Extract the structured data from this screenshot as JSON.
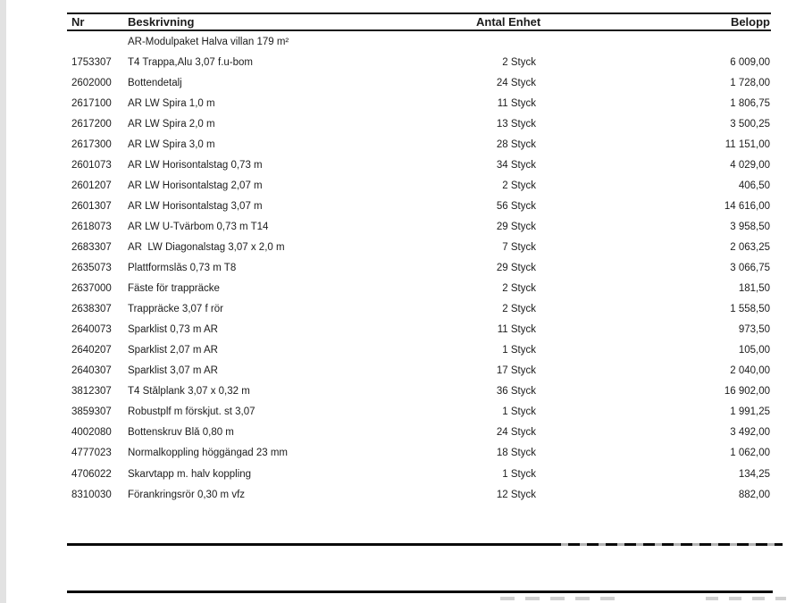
{
  "table": {
    "headers": {
      "nr": "Nr",
      "beskrivning": "Beskrivning",
      "antal_enhet": "Antal Enhet",
      "belopp": "Belopp"
    },
    "rows": [
      {
        "nr": "",
        "beskrivning": "AR-Modulpaket Halva villan 179 m²",
        "antal": "",
        "enhet": "",
        "belopp": ""
      },
      {
        "nr": "1753307",
        "beskrivning": "T4 Trappa,Alu 3,07 f.u-bom",
        "antal": "2",
        "enhet": "Styck",
        "belopp": "6 009,00"
      },
      {
        "nr": "2602000",
        "beskrivning": "Bottendetalj",
        "antal": "24",
        "enhet": "Styck",
        "belopp": "1 728,00"
      },
      {
        "nr": "2617100",
        "beskrivning": "AR LW Spira 1,0 m",
        "antal": "11",
        "enhet": "Styck",
        "belopp": "1 806,75"
      },
      {
        "nr": "2617200",
        "beskrivning": "AR LW Spira 2,0 m",
        "antal": "13",
        "enhet": "Styck",
        "belopp": "3 500,25"
      },
      {
        "nr": "2617300",
        "beskrivning": "AR LW Spira 3,0 m",
        "antal": "28",
        "enhet": "Styck",
        "belopp": "11 151,00"
      },
      {
        "nr": "2601073",
        "beskrivning": "AR LW Horisontalstag 0,73 m",
        "antal": "34",
        "enhet": "Styck",
        "belopp": "4 029,00"
      },
      {
        "nr": "2601207",
        "beskrivning": "AR LW Horisontalstag 2,07 m",
        "antal": "2",
        "enhet": "Styck",
        "belopp": "406,50"
      },
      {
        "nr": "2601307",
        "beskrivning": "AR LW Horisontalstag 3,07 m",
        "antal": "56",
        "enhet": "Styck",
        "belopp": "14 616,00"
      },
      {
        "nr": "2618073",
        "beskrivning": "AR LW U-Tvärbom 0,73 m T14",
        "antal": "29",
        "enhet": "Styck",
        "belopp": "3 958,50"
      },
      {
        "nr": "2683307",
        "beskrivning": "AR  LW Diagonalstag 3,07 x 2,0 m",
        "antal": "7",
        "enhet": "Styck",
        "belopp": "2 063,25"
      },
      {
        "nr": "2635073",
        "beskrivning": "Plattformslås 0,73 m T8",
        "antal": "29",
        "enhet": "Styck",
        "belopp": "3 066,75"
      },
      {
        "nr": "2637000",
        "beskrivning": "Fäste för trappräcke",
        "antal": "2",
        "enhet": "Styck",
        "belopp": "181,50"
      },
      {
        "nr": "2638307",
        "beskrivning": "Trappräcke 3,07 f rör",
        "antal": "2",
        "enhet": "Styck",
        "belopp": "1 558,50"
      },
      {
        "nr": "2640073",
        "beskrivning": "Sparklist 0,73 m AR",
        "antal": "11",
        "enhet": "Styck",
        "belopp": "973,50"
      },
      {
        "nr": "2640207",
        "beskrivning": "Sparklist 2,07 m AR",
        "antal": "1",
        "enhet": "Styck",
        "belopp": "105,00"
      },
      {
        "nr": "2640307",
        "beskrivning": "Sparklist 3,07 m AR",
        "antal": "17",
        "enhet": "Styck",
        "belopp": "2 040,00"
      },
      {
        "nr": "3812307",
        "beskrivning": "T4 Stålplank 3,07 x 0,32 m",
        "antal": "36",
        "enhet": "Styck",
        "belopp": "16 902,00"
      },
      {
        "nr": "3859307",
        "beskrivning": "Robustplf m förskjut. st 3,07",
        "antal": "1",
        "enhet": "Styck",
        "belopp": "1 991,25"
      },
      {
        "nr": "4002080",
        "beskrivning": "Bottenskruv Blå 0,80 m",
        "antal": "24",
        "enhet": "Styck",
        "belopp": "3 492,00"
      },
      {
        "nr": "4777023",
        "beskrivning": "Normalkoppling höggängad 23 mm",
        "antal": "18",
        "enhet": "Styck",
        "belopp": "1 062,00"
      },
      {
        "nr": "4706022",
        "beskrivning": "Skarvtapp m. halv koppling",
        "antal": "1",
        "enhet": "Styck",
        "belopp": "134,25"
      },
      {
        "nr": "8310030",
        "beskrivning": "Förankringsrör 0,30 m vfz",
        "antal": "12",
        "enhet": "Styck",
        "belopp": "882,00"
      }
    ]
  },
  "colors": {
    "text": "#1c1c1c",
    "rule": "#0a0a0a",
    "page_bg": "#ffffff",
    "edge_strip": "#e2e2e2",
    "watermark": "#b3b3b3"
  }
}
